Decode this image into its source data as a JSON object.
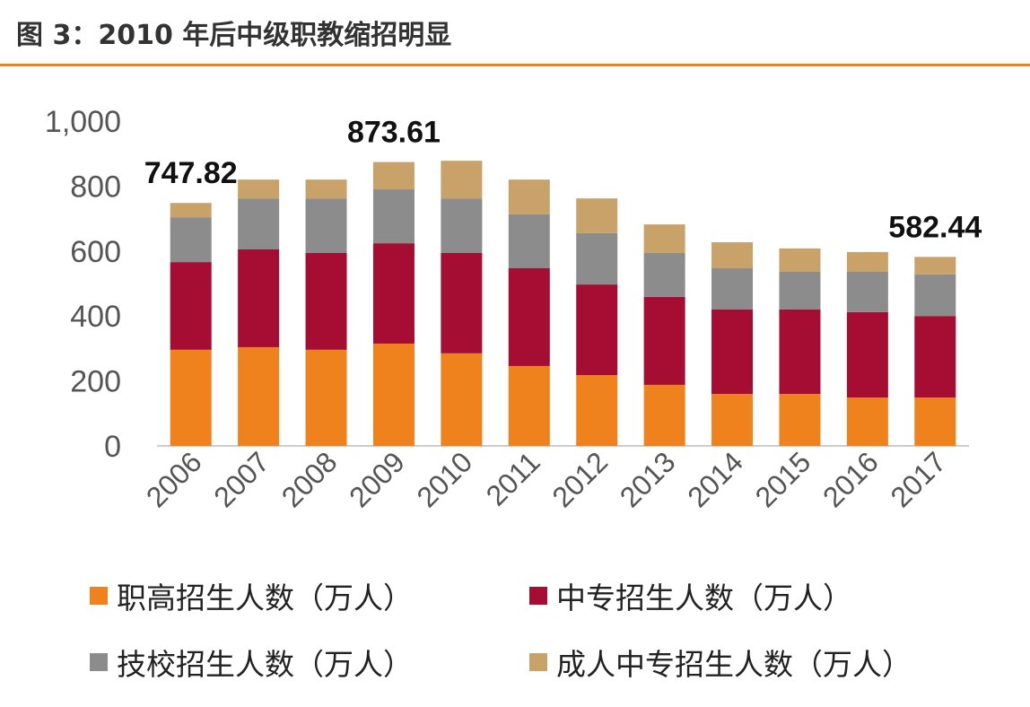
{
  "title": "图 3：2010 年后中级职教缩招明显",
  "chart_data": {
    "type": "bar",
    "stacked": true,
    "categories": [
      "2006",
      "2007",
      "2008",
      "2009",
      "2010",
      "2011",
      "2012",
      "2013",
      "2014",
      "2015",
      "2016",
      "2017"
    ],
    "series": [
      {
        "name": "职高招生人数（万人）",
        "color": "#F0821E",
        "values": [
          296,
          304,
          296,
          315,
          285,
          246,
          218,
          188,
          160,
          160,
          149,
          149
        ]
      },
      {
        "name": "中专招生人数（万人）",
        "color": "#A50D32",
        "values": [
          270,
          301,
          298,
          309,
          309,
          301,
          279,
          271,
          260,
          260,
          263,
          251
        ]
      },
      {
        "name": "技校招生人数（万人）",
        "color": "#8C8C8C",
        "values": [
          138,
          157,
          168,
          166,
          168,
          166,
          158,
          135,
          127,
          116,
          124,
          128
        ]
      },
      {
        "name": "成人中专招生人数（万人）",
        "color": "#C9A26A",
        "values": [
          44,
          58,
          58,
          84,
          116,
          107,
          107,
          88,
          80,
          72,
          61,
          54
        ]
      }
    ],
    "annotations": [
      {
        "category": "2006",
        "text": "747.82"
      },
      {
        "category": "2009",
        "text": "873.61"
      },
      {
        "category": "2017",
        "text": "582.44"
      }
    ],
    "ylim": [
      0,
      1000
    ],
    "yticks": [
      "0",
      "200",
      "400",
      "600",
      "800",
      "1,000"
    ],
    "grid": false,
    "legend_position": "bottom"
  }
}
